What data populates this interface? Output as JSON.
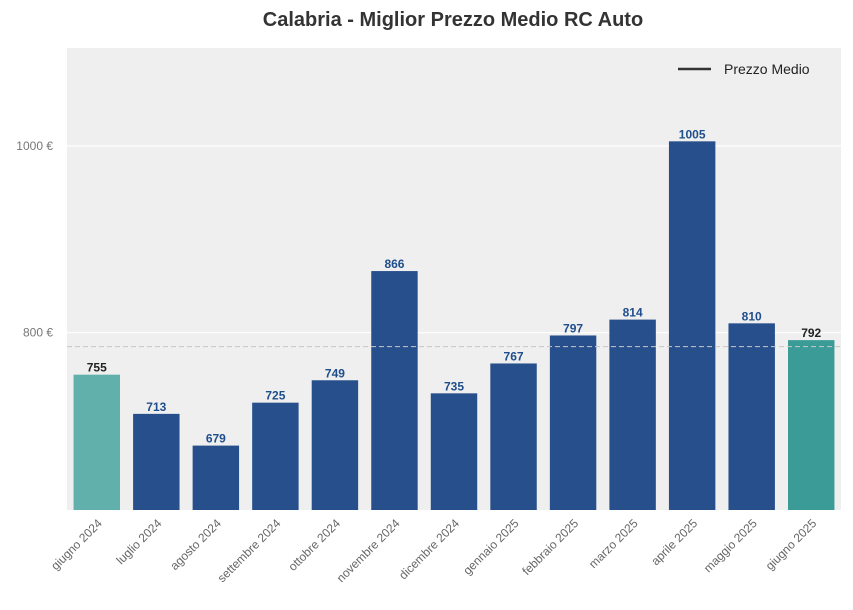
{
  "chart_data": {
    "type": "bar",
    "title": "Calabria - Miglior Prezzo Medio RC Auto",
    "xlabel": "",
    "ylabel": "",
    "categories": [
      "giugno 2024",
      "luglio 2024",
      "agosto 2024",
      "settembre 2024",
      "ottobre 2024",
      "novembre 2024",
      "dicembre 2024",
      "gennaio 2025",
      "febbraio 2025",
      "marzo 2025",
      "aprile 2025",
      "maggio 2025",
      "giugno 2025"
    ],
    "values": [
      755,
      713,
      679,
      725,
      749,
      866,
      735,
      767,
      797,
      814,
      1005,
      810,
      792
    ],
    "value_labels": [
      "755",
      "713",
      "679",
      "725",
      "749",
      "866",
      "735",
      "767",
      "797",
      "814",
      "1005",
      "810",
      "792"
    ],
    "ylim": [
      610,
      1105
    ],
    "yticks": [
      800,
      1000
    ],
    "ytick_labels": [
      "800 €",
      "1000 €"
    ],
    "average_line": 785,
    "grid": true,
    "legend": {
      "placement": "top-right",
      "entries": [
        "Prezzo Medio"
      ]
    },
    "colors": {
      "bar_main": "#274f8b",
      "bar_first": "#62b0ac",
      "bar_last": "#3a9b97",
      "label_main": "#1f4e8c",
      "label_edge": "#222222",
      "plot_bg": "#efefef",
      "avg_line": "#c8c8c8",
      "legend_line": "#333333"
    }
  }
}
